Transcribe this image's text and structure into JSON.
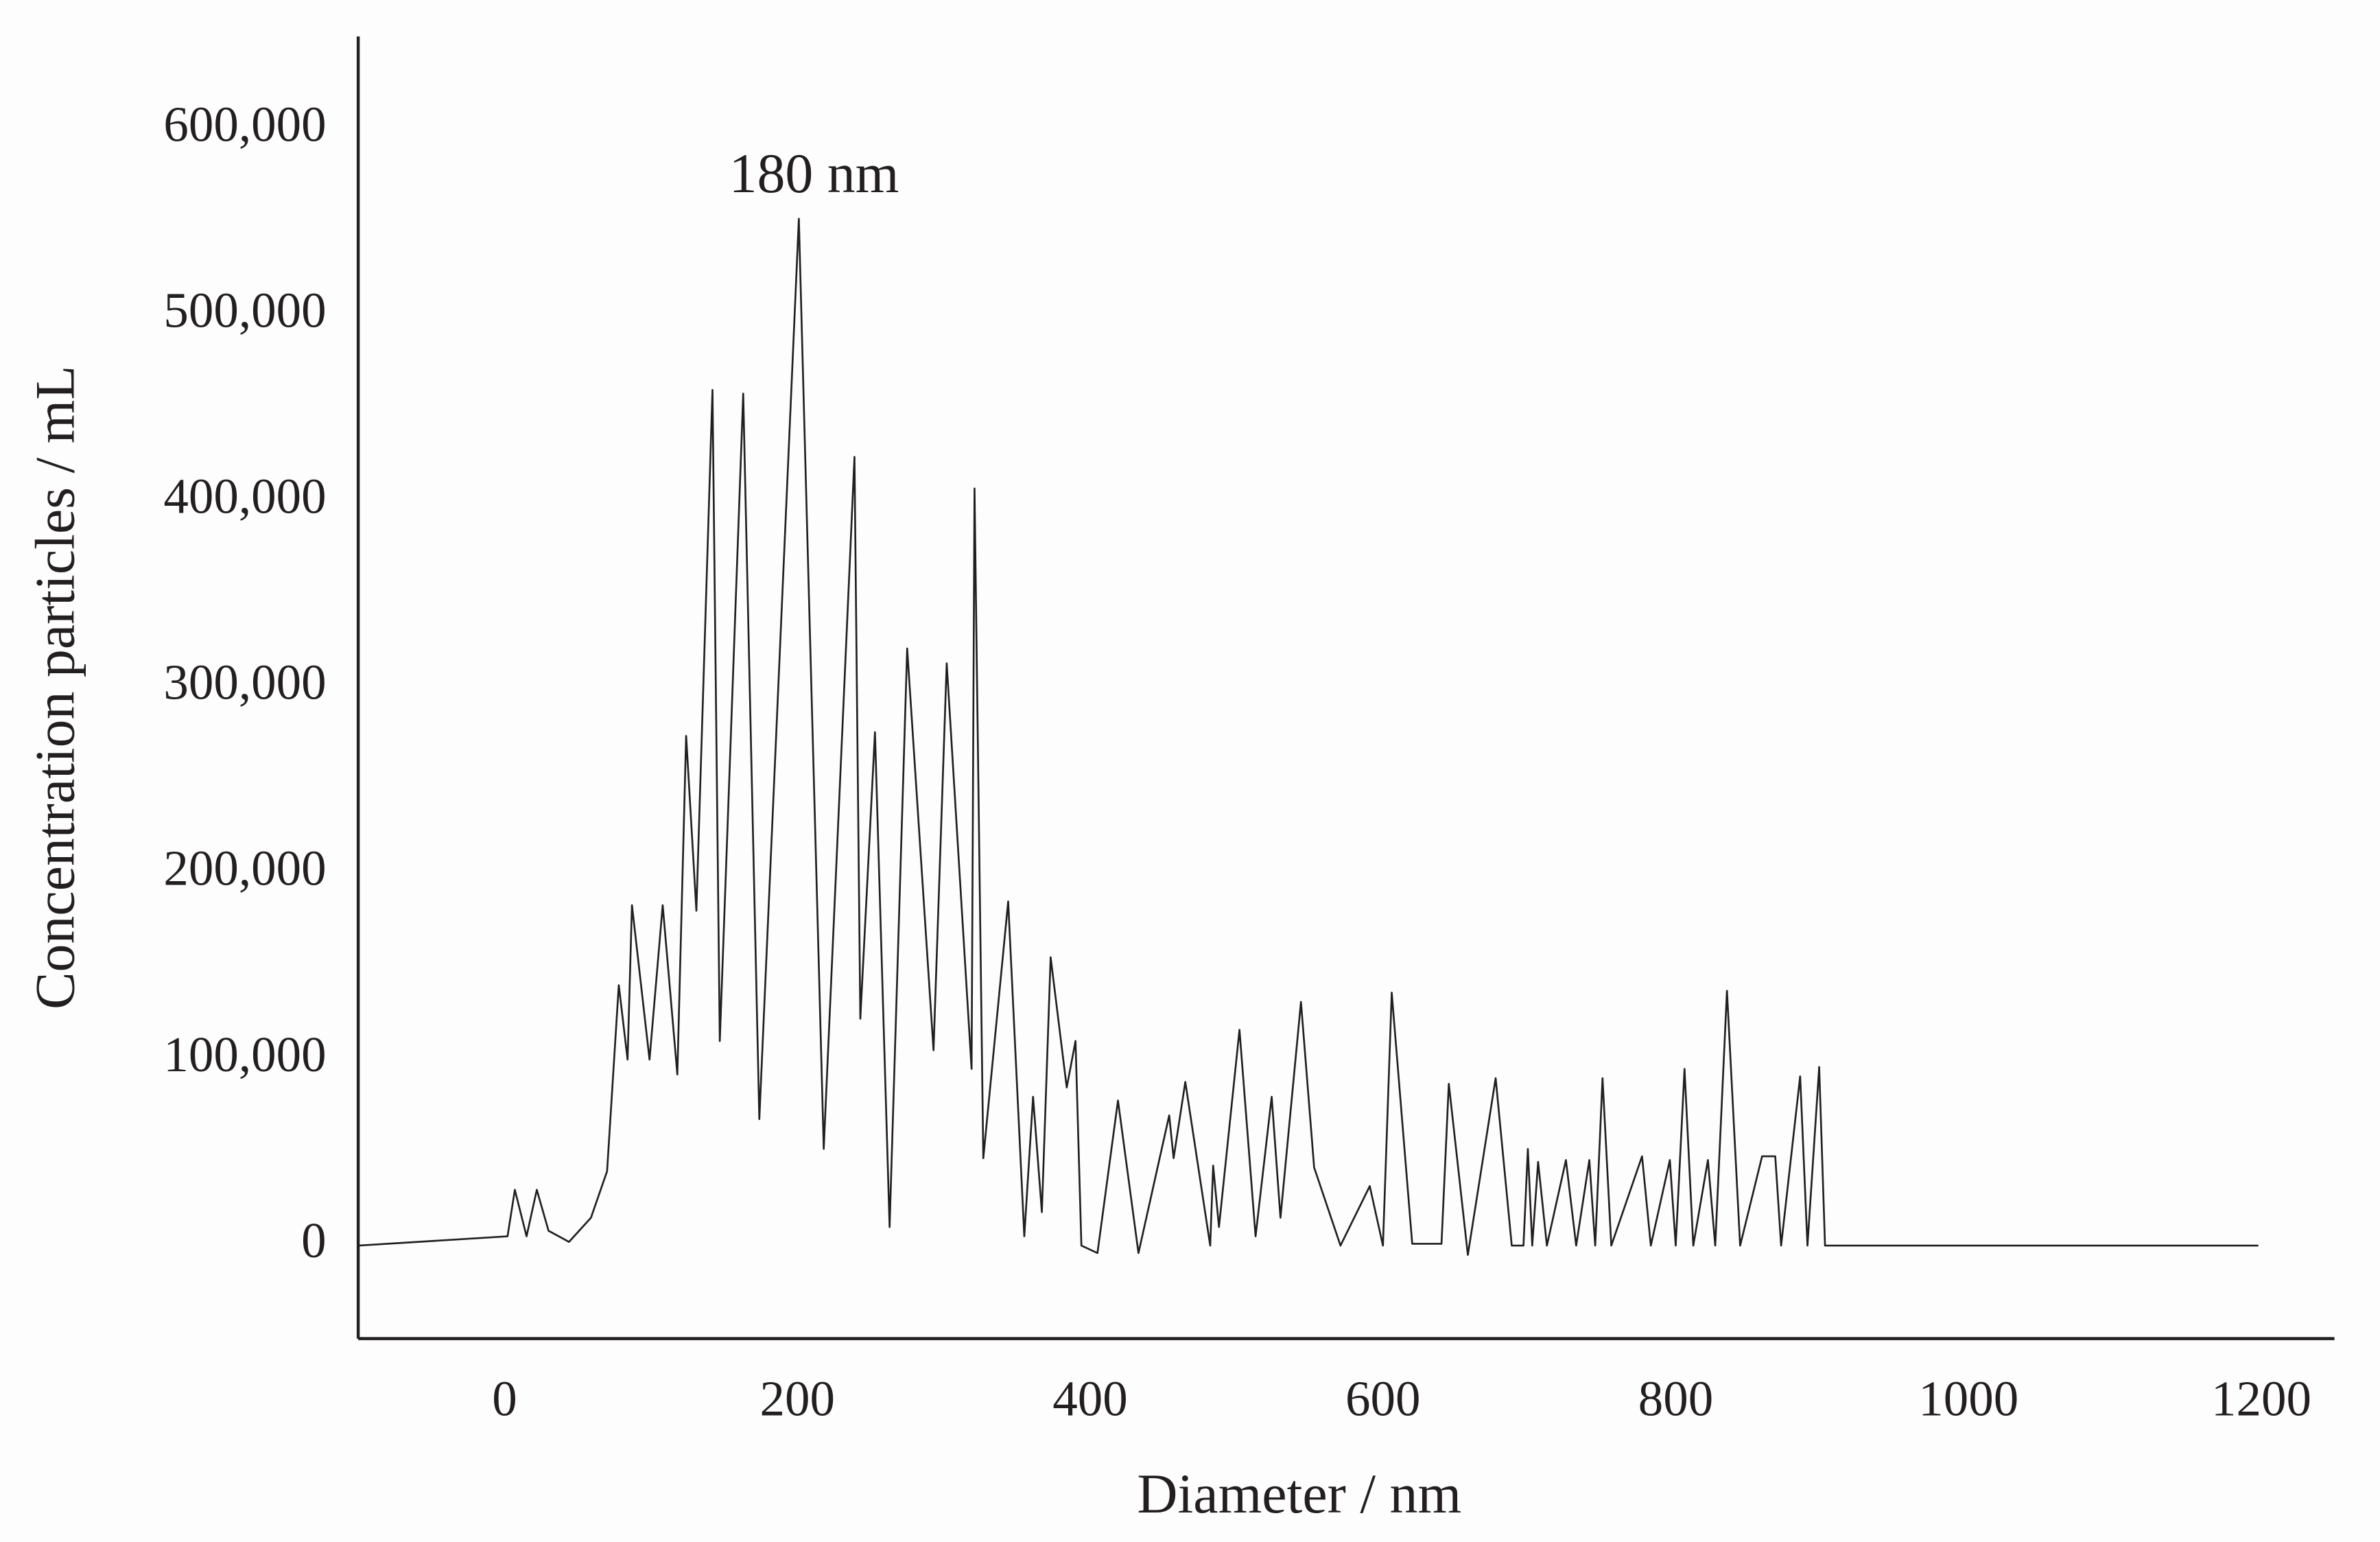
{
  "chart_data": {
    "type": "line",
    "xlabel": "Diameter / nm",
    "ylabel": "Concentration particles / mL",
    "annotation": "180 nm",
    "color": "#231f20",
    "x": [
      -100,
      2,
      7,
      15,
      22,
      30,
      44,
      59,
      70,
      78,
      84,
      87,
      99,
      108,
      118,
      124,
      131,
      142,
      147,
      163,
      174,
      201,
      218,
      239,
      243,
      253,
      263,
      275,
      293,
      302,
      319,
      321,
      327,
      344,
      355,
      361,
      367,
      373,
      384,
      390,
      394,
      405,
      419,
      433,
      454,
      457,
      465,
      482,
      484,
      488,
      502,
      513,
      524,
      530,
      544,
      553,
      571,
      591,
      600,
      606,
      620,
      640,
      645,
      658,
      677,
      688,
      696,
      699,
      702,
      706,
      712,
      725,
      732,
      741,
      745,
      750,
      756,
      777,
      783,
      796,
      800,
      806,
      812,
      822,
      827,
      835,
      844,
      859,
      868,
      872,
      885,
      890,
      898,
      902,
      1198
    ],
    "values": [
      0,
      5000,
      30000,
      5000,
      30000,
      8000,
      2000,
      15000,
      40000,
      140000,
      100000,
      183000,
      100000,
      183000,
      92000,
      274000,
      180000,
      460000,
      110000,
      458000,
      68000,
      552000,
      52000,
      424000,
      122000,
      276000,
      10000,
      321000,
      105000,
      313000,
      95000,
      407000,
      47000,
      185000,
      5000,
      80000,
      18000,
      155000,
      85000,
      110000,
      0,
      -4000,
      78000,
      -4000,
      70000,
      47000,
      88000,
      0,
      43000,
      10000,
      116000,
      5000,
      80000,
      15000,
      131000,
      42000,
      0,
      32000,
      0,
      136000,
      1000,
      1000,
      87000,
      -5000,
      90000,
      0,
      0,
      52000,
      0,
      45000,
      0,
      46000,
      0,
      46000,
      0,
      90000,
      0,
      48000,
      0,
      46000,
      0,
      95000,
      0,
      46000,
      0,
      137000,
      0,
      48000,
      48000,
      0,
      91000,
      0,
      96000,
      0,
      0
    ],
    "xlim": [
      -100,
      1250
    ],
    "ylim": [
      -50000,
      650000
    ],
    "xticks": [
      0,
      200,
      400,
      600,
      800,
      1000,
      1200
    ],
    "yticks": [
      0,
      {
        "value": 100000,
        "label": "100,000"
      },
      {
        "value": 200000,
        "label": "200,000"
      },
      {
        "value": 300000,
        "label": "300,000"
      },
      {
        "value": 400000,
        "label": "400,000"
      },
      {
        "value": 500000,
        "label": "500,000"
      },
      {
        "value": 600000,
        "label": "600,000"
      }
    ]
  }
}
